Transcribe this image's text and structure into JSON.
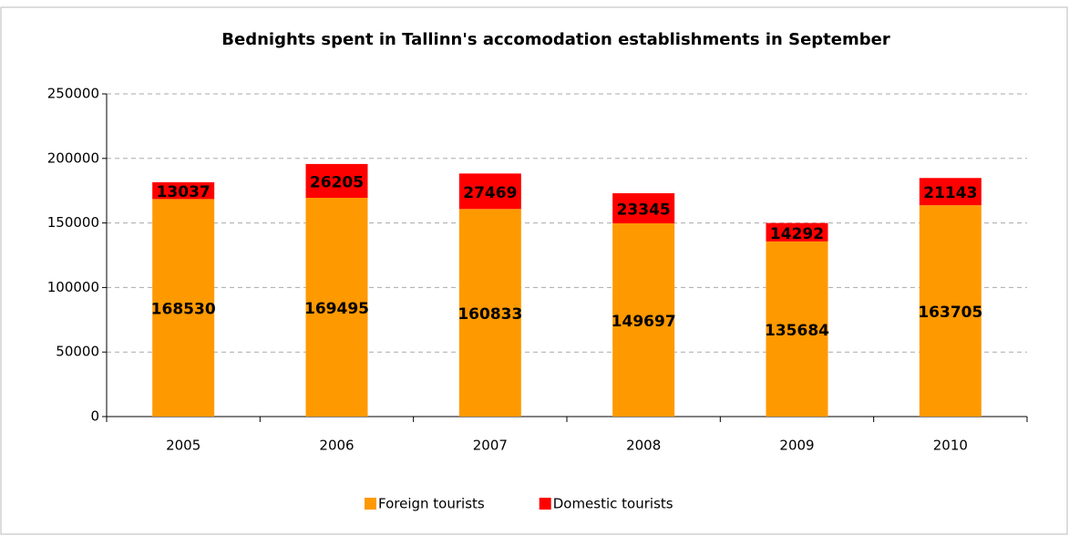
{
  "chart_data": {
    "type": "stacked_bar",
    "title": "Bednights spent in Tallinn's accomodation establishments in September",
    "categories": [
      "2005",
      "2006",
      "2007",
      "2008",
      "2009",
      "2010"
    ],
    "series": [
      {
        "name": "Foreign tourists",
        "color": "#ff9900",
        "values": [
          168530,
          169495,
          160833,
          149697,
          135684,
          163705
        ]
      },
      {
        "name": "Domestic tourists",
        "color": "#ff0000",
        "values": [
          13037,
          26205,
          27469,
          23345,
          14292,
          21143
        ]
      }
    ],
    "ylim": [
      0,
      250000
    ],
    "yticks": [
      0,
      50000,
      100000,
      150000,
      200000,
      250000
    ],
    "grid": true,
    "legend": "bottom"
  }
}
